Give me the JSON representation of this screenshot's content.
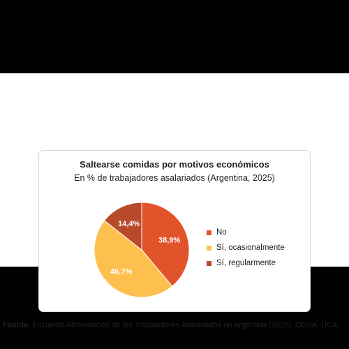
{
  "chart_data": {
    "type": "pie",
    "title": "Saltearse comidas por motivos económicos",
    "subtitle": "En % de trabajadores asalariados (Argentina, 2025)",
    "legend_position": "right",
    "slices": [
      {
        "label": "No",
        "value": 38.9,
        "display": "38,9%",
        "color": "#e0532b"
      },
      {
        "label": "Sí, ocasionalmente",
        "value": 46.7,
        "display": "46,7%",
        "color": "#fdc04f"
      },
      {
        "label": "Sí, regularmente",
        "value": 14.4,
        "display": "14,4%",
        "color": "#b84a2c"
      }
    ]
  },
  "source": {
    "label": "Fuente",
    "text": ". Encuesta Alimentación de los Trabajadores Asalariados en Argentina (2025). ODSA, UCA."
  }
}
